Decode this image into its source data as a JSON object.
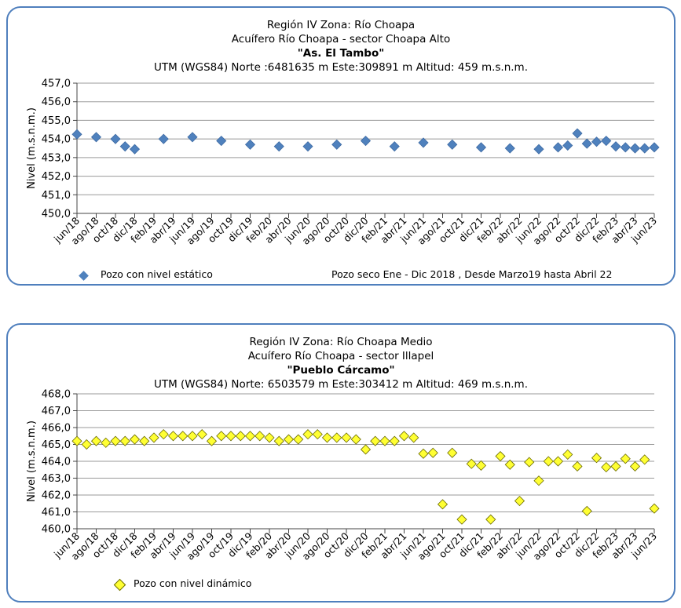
{
  "chart_data": [
    {
      "type": "scatter",
      "header": {
        "line1": "Región IV  Zona: Río Choapa",
        "line2": "Acuífero Río Choapa - sector Choapa Alto",
        "line3": "\"As. El Tambo\"",
        "line4": "UTM (WGS84) Norte :6481635 m   Este:309891 m   Altitud: 459 m.s.n.m."
      },
      "ylabel": "Nivel (m.s.n.m.)",
      "ylim": [
        450,
        457
      ],
      "yticks": [
        "450,0",
        "451,0",
        "452,0",
        "453,0",
        "454,0",
        "455,0",
        "456,0",
        "457,0"
      ],
      "xlim": [
        0,
        60
      ],
      "xticks": [
        "jun/18",
        "ago/18",
        "oct/18",
        "dic/18",
        "feb/19",
        "abr/19",
        "jun/19",
        "ago/19",
        "oct/19",
        "dic/19",
        "feb/20",
        "abr/20",
        "jun/20",
        "ago/20",
        "oct/20",
        "dic/20",
        "feb/21",
        "abr/21",
        "jun/21",
        "ago/21",
        "oct/21",
        "dic/21",
        "feb/22",
        "abr/22",
        "jun/22",
        "ago/22",
        "oct/22",
        "dic/22",
        "feb/23",
        "abr/23",
        "jun/23"
      ],
      "grid": true,
      "marker_color": "#4f81bd",
      "series": [
        {
          "name": "Pozo con nivel estático",
          "x": [
            0,
            2,
            4,
            5,
            6,
            9,
            12,
            15,
            18,
            21,
            24,
            27,
            30,
            33,
            36,
            39,
            42,
            45,
            48,
            50,
            51,
            52,
            53,
            54,
            55,
            56,
            57,
            58,
            59,
            60
          ],
          "y": [
            454.25,
            454.1,
            454.0,
            453.6,
            453.45,
            454.0,
            454.1,
            453.9,
            453.7,
            453.6,
            453.6,
            453.7,
            453.9,
            453.6,
            453.8,
            453.7,
            453.55,
            453.5,
            453.45,
            453.55,
            453.65,
            454.3,
            453.75,
            453.85,
            453.9,
            453.6,
            453.55,
            453.5,
            453.5,
            453.55
          ]
        }
      ],
      "legend": "Pozo con nivel estático",
      "note": "Pozo seco  Ene - Dic 2018 , Desde Marzo19  hasta Abril 22"
    },
    {
      "type": "scatter",
      "header": {
        "line1": "Región IV  Zona: Río Choapa Medio",
        "line2": "Acuífero Río Choapa - sector Illapel",
        "line3": "\"Pueblo Cárcamo\"",
        "line4": "UTM (WGS84) Norte: 6503579 m   Este:303412 m   Altitud: 469 m.s.n.m."
      },
      "ylabel": "Nivel (m.s.n.m.)",
      "ylim": [
        460,
        468
      ],
      "yticks": [
        "460,0",
        "461,0",
        "462,0",
        "463,0",
        "464,0",
        "465,0",
        "466,0",
        "467,0",
        "468,0"
      ],
      "xlim": [
        0,
        60
      ],
      "xticks": [
        "jun/18",
        "ago/18",
        "oct/18",
        "dic/18",
        "feb/19",
        "abr/19",
        "jun/19",
        "ago/19",
        "oct/19",
        "dic/19",
        "feb/20",
        "abr/20",
        "jun/20",
        "ago/20",
        "oct/20",
        "dic/20",
        "feb/21",
        "abr/21",
        "jun/21",
        "ago/21",
        "oct/21",
        "dic/21",
        "feb/22",
        "abr/22",
        "jun/22",
        "ago/22",
        "oct/22",
        "dic/22",
        "feb/23",
        "abr/23",
        "jun/23"
      ],
      "grid": true,
      "marker_color": "#ffff33",
      "series": [
        {
          "name": "Pozo con nivel dinámico",
          "x": [
            0,
            1,
            2,
            3,
            4,
            5,
            6,
            7,
            8,
            9,
            10,
            11,
            12,
            13,
            14,
            15,
            16,
            17,
            18,
            19,
            20,
            21,
            22,
            23,
            24,
            25,
            26,
            27,
            28,
            29,
            30,
            31,
            32,
            33,
            34,
            35,
            36,
            37,
            38,
            39,
            40,
            41,
            42,
            43,
            44,
            45,
            46,
            47,
            48,
            49,
            50,
            51,
            52,
            53,
            54,
            55,
            56,
            57,
            58,
            59,
            60
          ],
          "y": [
            465.2,
            465.0,
            465.2,
            465.1,
            465.2,
            465.2,
            465.3,
            465.2,
            465.4,
            465.6,
            465.5,
            465.5,
            465.5,
            465.6,
            465.2,
            465.5,
            465.5,
            465.5,
            465.5,
            465.5,
            465.4,
            465.2,
            465.3,
            465.3,
            465.6,
            465.6,
            465.4,
            465.4,
            465.4,
            465.3,
            464.7,
            465.2,
            465.2,
            465.2,
            465.5,
            465.4,
            464.45,
            464.5,
            461.45,
            464.5,
            460.55,
            463.85,
            463.75,
            460.55,
            464.3,
            463.8,
            461.65,
            463.95,
            462.85,
            464.0,
            464.0,
            464.4,
            463.7,
            461.05,
            464.2,
            463.65,
            463.7,
            464.15,
            463.7,
            464.1,
            461.2
          ]
        }
      ],
      "legend": "Pozo con nivel dinámico"
    }
  ]
}
